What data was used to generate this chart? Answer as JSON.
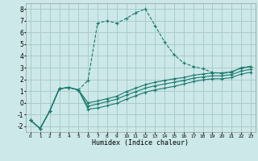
{
  "bg_color": "#cce8e8",
  "grid_color": "#aacccc",
  "line_color": "#1a7a6e",
  "xlabel": "Humidex (Indice chaleur)",
  "ylim": [
    -2.5,
    8.5
  ],
  "xlim": [
    -0.5,
    23.5
  ],
  "yticks": [
    -2,
    -1,
    0,
    1,
    2,
    3,
    4,
    5,
    6,
    7,
    8
  ],
  "xticks": [
    0,
    1,
    2,
    3,
    4,
    5,
    6,
    7,
    8,
    9,
    10,
    11,
    12,
    13,
    14,
    15,
    16,
    17,
    18,
    19,
    20,
    21,
    22,
    23
  ],
  "line1_x": [
    0,
    1,
    2,
    3,
    4,
    5,
    6,
    7,
    8,
    9,
    10,
    11,
    12,
    13,
    14,
    15,
    16,
    17,
    18,
    19,
    20,
    21,
    22,
    23
  ],
  "line1_y": [
    -1.5,
    -2.2,
    -0.7,
    1.2,
    1.3,
    1.1,
    1.9,
    6.8,
    7.0,
    6.8,
    7.2,
    7.7,
    8.0,
    6.6,
    5.2,
    4.1,
    3.4,
    3.1,
    2.9,
    2.6,
    2.5,
    2.6,
    3.0,
    3.1
  ],
  "line2_x": [
    0,
    1,
    2,
    3,
    4,
    5,
    6,
    7,
    8,
    9,
    10,
    11,
    12,
    13,
    14,
    15,
    16,
    17,
    18,
    19,
    20,
    21,
    22,
    23
  ],
  "line2_y": [
    -1.5,
    -2.2,
    -0.7,
    1.2,
    1.3,
    1.1,
    0.0,
    0.15,
    0.35,
    0.55,
    0.95,
    1.25,
    1.55,
    1.75,
    1.9,
    2.05,
    2.15,
    2.35,
    2.45,
    2.55,
    2.55,
    2.65,
    2.95,
    3.1
  ],
  "line3_x": [
    0,
    1,
    2,
    3,
    4,
    5,
    6,
    7,
    8,
    9,
    10,
    11,
    12,
    13,
    14,
    15,
    16,
    17,
    18,
    19,
    20,
    21,
    22,
    23
  ],
  "line3_y": [
    -1.5,
    -2.2,
    -0.7,
    1.2,
    1.3,
    1.1,
    -0.3,
    -0.1,
    0.1,
    0.3,
    0.65,
    0.95,
    1.25,
    1.45,
    1.6,
    1.75,
    1.9,
    2.1,
    2.2,
    2.3,
    2.3,
    2.4,
    2.7,
    2.85
  ],
  "line4_x": [
    0,
    1,
    2,
    3,
    4,
    5,
    6,
    7,
    8,
    9,
    10,
    11,
    12,
    13,
    14,
    15,
    16,
    17,
    18,
    19,
    20,
    21,
    22,
    23
  ],
  "line4_y": [
    -1.5,
    -2.2,
    -0.7,
    1.2,
    1.3,
    1.1,
    -0.55,
    -0.45,
    -0.25,
    -0.05,
    0.3,
    0.6,
    0.9,
    1.1,
    1.25,
    1.4,
    1.6,
    1.8,
    1.95,
    2.05,
    2.05,
    2.15,
    2.45,
    2.6
  ]
}
